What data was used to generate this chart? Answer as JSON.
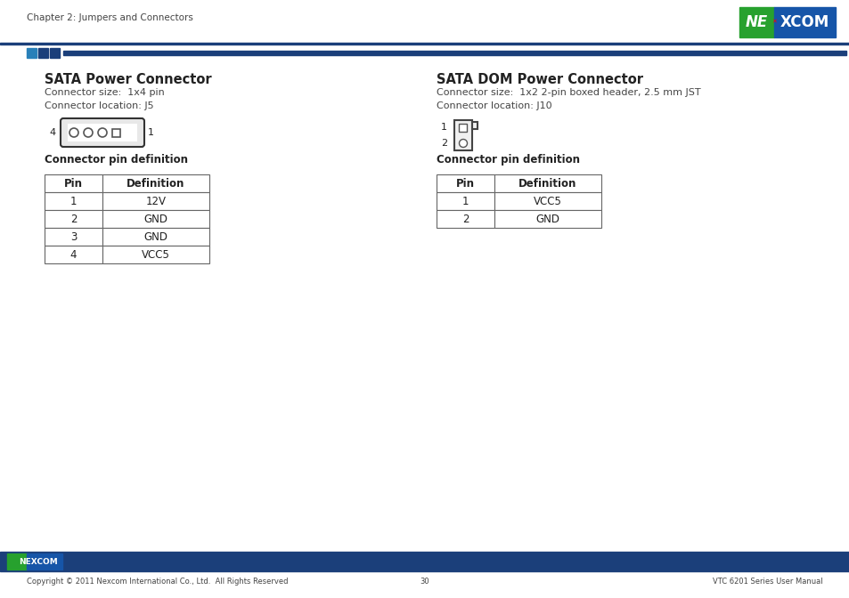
{
  "page_title": "Chapter 2: Jumpers and Connectors",
  "bg_color": "#ffffff",
  "header_bar_color": "#1b3f7a",
  "footer_bar_color": "#1b3f7a",
  "footer_text_left": "Copyright © 2011 Nexcom International Co., Ltd.  All Rights Reserved",
  "footer_text_center": "30",
  "footer_text_right": "VTC 6201 Series User Manual",
  "left_section_title": "SATA Power Connector",
  "left_size_text": "Connector size:  1x4 pin",
  "left_location_text": "Connector location: J5",
  "left_table_title": "Connector pin definition",
  "left_table_headers": [
    "Pin",
    "Definition"
  ],
  "left_table_rows": [
    [
      "1",
      "12V"
    ],
    [
      "2",
      "GND"
    ],
    [
      "3",
      "GND"
    ],
    [
      "4",
      "VCC5"
    ]
  ],
  "right_section_title": "SATA DOM Power Connector",
  "right_size_text": "Connector size:  1x2 2-pin boxed header, 2.5 mm JST",
  "right_location_text": "Connector location: J10",
  "right_table_title": "Connector pin definition",
  "right_table_headers": [
    "Pin",
    "Definition"
  ],
  "right_table_rows": [
    [
      "1",
      "VCC5"
    ],
    [
      "2",
      "GND"
    ]
  ],
  "sq_colors": [
    "#2980b9",
    "#1b3f7a",
    "#1b3f7a"
  ],
  "nexcom_green": "#27a12e",
  "nexcom_blue": "#1655a8",
  "text_dark": "#222222",
  "text_mid": "#444444"
}
